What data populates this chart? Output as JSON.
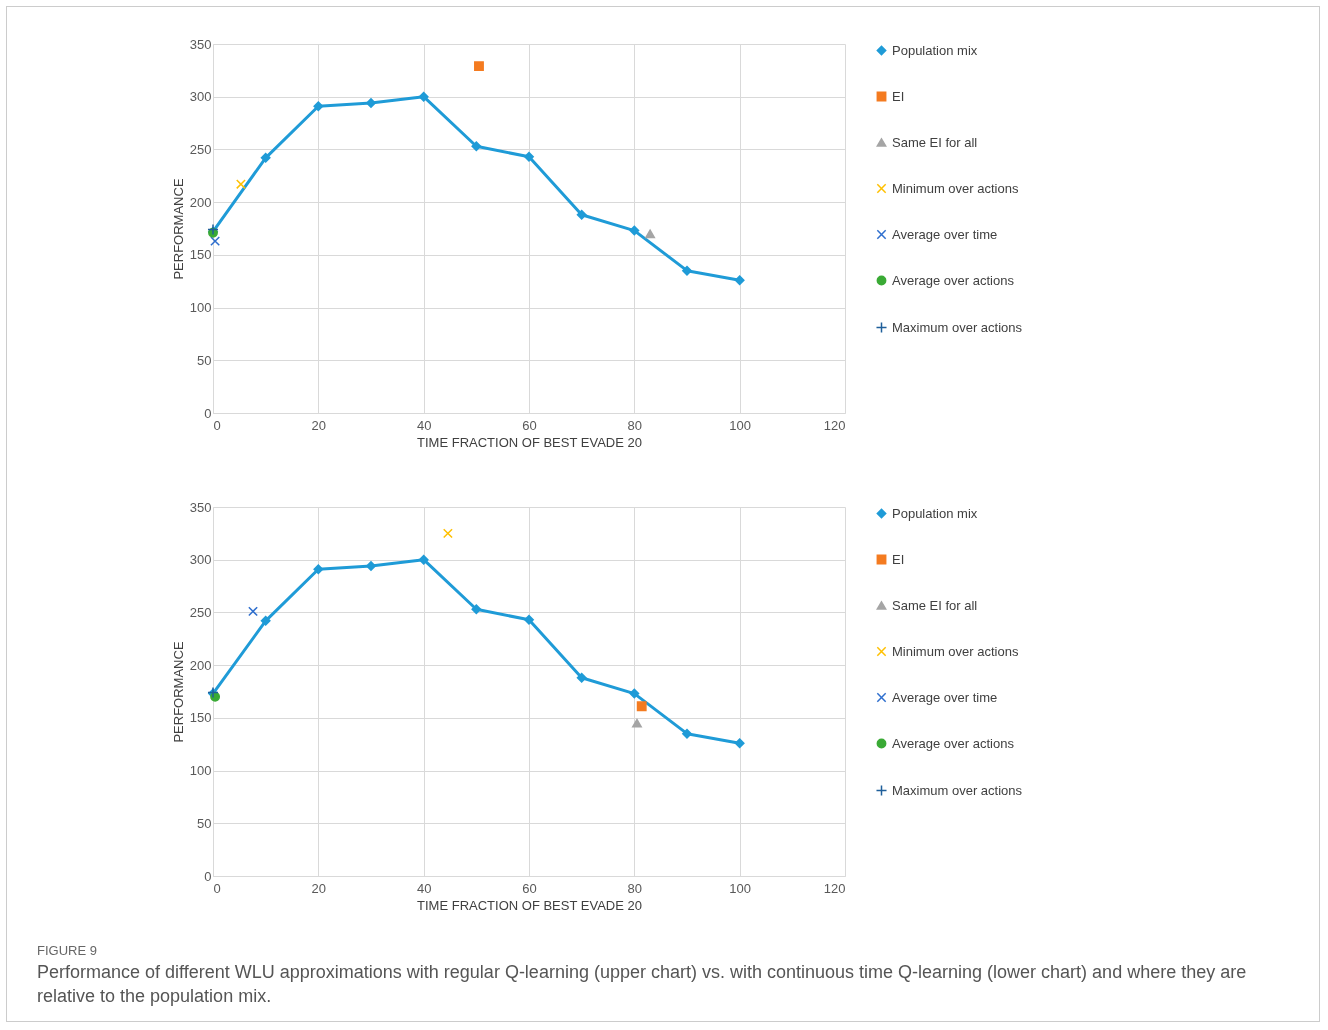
{
  "chart_data": [
    {
      "type": "line",
      "xlabel": "TIME FRACTION OF BEST EVADE 20",
      "ylabel": "PERFORMANCE",
      "xlim": [
        0,
        120
      ],
      "xticks": [
        0,
        20,
        40,
        60,
        80,
        100,
        120
      ],
      "ylim": [
        0,
        350
      ],
      "yticks": [
        0,
        50,
        100,
        150,
        200,
        250,
        300,
        350
      ],
      "grid": true,
      "legend": "right",
      "series": [
        {
          "name": "Population mix",
          "marker": "diamond",
          "color": "#1f9bd7",
          "x": [
            0,
            10,
            20,
            30,
            40,
            50,
            60,
            70,
            80,
            90,
            100
          ],
          "values": [
            172,
            242,
            291,
            294,
            300,
            253,
            243,
            188,
            173,
            135,
            126
          ]
        },
        {
          "name": "EI",
          "type": "scatter",
          "marker": "square",
          "color": "#f47b20",
          "x": [
            50.5
          ],
          "values": [
            329
          ]
        },
        {
          "name": "Same EI for all",
          "type": "scatter",
          "marker": "triangle",
          "color": "#a5a5a5",
          "x": [
            83
          ],
          "values": [
            170
          ]
        },
        {
          "name": "Minimum over actions",
          "type": "scatter",
          "marker": "cross",
          "color": "#ffc000",
          "x": [
            5.3
          ],
          "values": [
            217
          ]
        },
        {
          "name": "Average over time",
          "type": "scatter",
          "marker": "cross",
          "color": "#2f6fce",
          "x": [
            0.4
          ],
          "values": [
            163
          ]
        },
        {
          "name": "Average over actions",
          "type": "scatter",
          "marker": "circle",
          "color": "#3aaa35",
          "x": [
            0
          ],
          "values": [
            171
          ]
        },
        {
          "name": "Maximum over actions",
          "type": "scatter",
          "marker": "plus",
          "color": "#1f5f9a",
          "x": [
            0
          ],
          "values": [
            174
          ]
        }
      ]
    },
    {
      "type": "line",
      "xlabel": "TIME FRACTION OF BEST EVADE 20",
      "ylabel": "PERFORMANCE",
      "xlim": [
        0,
        120
      ],
      "xticks": [
        0,
        20,
        40,
        60,
        80,
        100,
        120
      ],
      "ylim": [
        0,
        350
      ],
      "yticks": [
        0,
        50,
        100,
        150,
        200,
        250,
        300,
        350
      ],
      "grid": true,
      "legend": "right",
      "annotations": [
        "FIGURE 9",
        "Performance of different WLU approximations with regular Q-learning (upper chart) vs. with continuous time Q-learning (lower chart) and where they are relative to the population mix."
      ],
      "series": [
        {
          "name": "Population mix",
          "marker": "diamond",
          "color": "#1f9bd7",
          "x": [
            0,
            10,
            20,
            30,
            40,
            50,
            60,
            70,
            80,
            90,
            100
          ],
          "values": [
            173,
            242,
            291,
            294,
            300,
            253,
            243,
            188,
            173,
            135,
            126
          ]
        },
        {
          "name": "EI",
          "type": "scatter",
          "marker": "square",
          "color": "#f47b20",
          "x": [
            81.4
          ],
          "values": [
            161
          ]
        },
        {
          "name": "Same EI for all",
          "type": "scatter",
          "marker": "triangle",
          "color": "#a5a5a5",
          "x": [
            80.5
          ],
          "values": [
            145
          ]
        },
        {
          "name": "Minimum over actions",
          "type": "scatter",
          "marker": "cross",
          "color": "#ffc000",
          "x": [
            44.6
          ],
          "values": [
            325
          ]
        },
        {
          "name": "Average over time",
          "type": "scatter",
          "marker": "cross",
          "color": "#2f6fce",
          "x": [
            7.6
          ],
          "values": [
            251
          ]
        },
        {
          "name": "Average over actions",
          "type": "scatter",
          "marker": "circle",
          "color": "#3aaa35",
          "x": [
            0.4
          ],
          "values": [
            170
          ]
        },
        {
          "name": "Maximum over actions",
          "type": "scatter",
          "marker": "plus",
          "color": "#1f5f9a",
          "x": [
            0
          ],
          "values": [
            174
          ]
        }
      ]
    }
  ]
}
